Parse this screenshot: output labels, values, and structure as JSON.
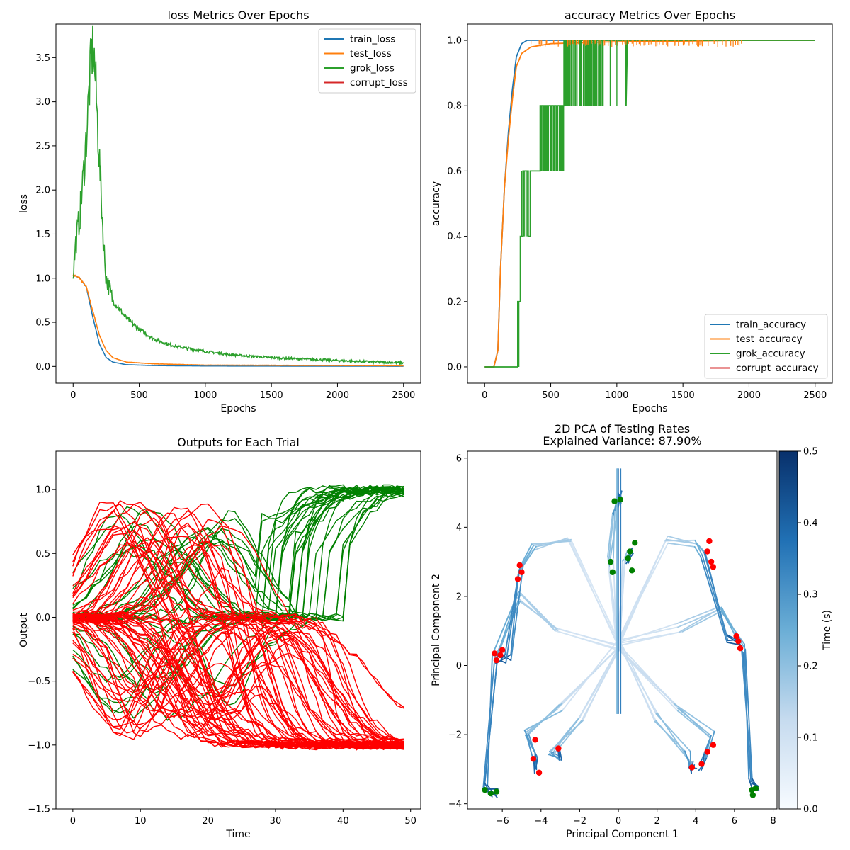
{
  "chart_data": [
    {
      "type": "line",
      "title": "loss Metrics Over Epochs",
      "xlabel": "Epochs",
      "ylabel": "loss",
      "xlim": [
        -130,
        2630
      ],
      "ylim": [
        -0.19,
        3.88
      ],
      "xticks": [
        0,
        500,
        1000,
        1500,
        2000,
        2500
      ],
      "xtick_labels": [
        "0",
        "500",
        "1000",
        "1500",
        "2000",
        "2500"
      ],
      "yticks": [
        0,
        0.5,
        1,
        1.5,
        2,
        2.5,
        3,
        3.5
      ],
      "ytick_labels": [
        "0.0",
        "0.5",
        "1.0",
        "1.5",
        "2.0",
        "2.5",
        "3.0",
        "3.5"
      ],
      "legend_position": "top-right",
      "series": [
        {
          "name": "train_loss",
          "color": "#1f77b4",
          "noise": 0,
          "points": [
            [
              0,
              1.04
            ],
            [
              50,
              1.0
            ],
            [
              100,
              0.9
            ],
            [
              150,
              0.55
            ],
            [
              200,
              0.25
            ],
            [
              250,
              0.1
            ],
            [
              300,
              0.05
            ],
            [
              400,
              0.02
            ],
            [
              600,
              0.01
            ],
            [
              1000,
              0.005
            ],
            [
              2500,
              0.002
            ]
          ]
        },
        {
          "name": "test_loss",
          "color": "#ff7f0e",
          "noise": 0.005,
          "points": [
            [
              0,
              1.04
            ],
            [
              50,
              1.0
            ],
            [
              100,
              0.9
            ],
            [
              150,
              0.62
            ],
            [
              200,
              0.35
            ],
            [
              250,
              0.18
            ],
            [
              300,
              0.1
            ],
            [
              400,
              0.05
            ],
            [
              600,
              0.03
            ],
            [
              1000,
              0.015
            ],
            [
              2500,
              0.008
            ]
          ]
        },
        {
          "name": "grok_loss",
          "color": "#2ca02c",
          "noise": 0.05,
          "points": [
            [
              0,
              1.05
            ],
            [
              20,
              1.4
            ],
            [
              50,
              1.7
            ],
            [
              80,
              2.2
            ],
            [
              100,
              2.6
            ],
            [
              120,
              3.1
            ],
            [
              140,
              3.55
            ],
            [
              155,
              3.6
            ],
            [
              170,
              3.2
            ],
            [
              190,
              2.6
            ],
            [
              210,
              2.0
            ],
            [
              230,
              1.4
            ],
            [
              250,
              1.0
            ],
            [
              300,
              0.75
            ],
            [
              400,
              0.55
            ],
            [
              500,
              0.42
            ],
            [
              600,
              0.32
            ],
            [
              700,
              0.26
            ],
            [
              800,
              0.22
            ],
            [
              1000,
              0.17
            ],
            [
              1200,
              0.13
            ],
            [
              1500,
              0.1
            ],
            [
              1800,
              0.08
            ],
            [
              2100,
              0.06
            ],
            [
              2500,
              0.04
            ]
          ]
        },
        {
          "name": "corrupt_loss",
          "color": "#d62728",
          "noise": 0,
          "points": []
        }
      ]
    },
    {
      "type": "line",
      "title": "accuracy Metrics Over Epochs",
      "xlabel": "Epochs",
      "ylabel": "accuracy",
      "xlim": [
        -130,
        2630
      ],
      "ylim": [
        -0.05,
        1.05
      ],
      "xticks": [
        0,
        500,
        1000,
        1500,
        2000,
        2500
      ],
      "xtick_labels": [
        "0",
        "500",
        "1000",
        "1500",
        "2000",
        "2500"
      ],
      "yticks": [
        0,
        0.2,
        0.4,
        0.6,
        0.8,
        1.0
      ],
      "ytick_labels": [
        "0.0",
        "0.2",
        "0.4",
        "0.6",
        "0.8",
        "1.0"
      ],
      "legend_position": "bottom-right",
      "series": [
        {
          "name": "train_accuracy",
          "color": "#1f77b4",
          "points": [
            [
              0,
              0
            ],
            [
              70,
              0
            ],
            [
              100,
              0.05
            ],
            [
              120,
              0.3
            ],
            [
              150,
              0.55
            ],
            [
              180,
              0.72
            ],
            [
              210,
              0.85
            ],
            [
              240,
              0.95
            ],
            [
              280,
              0.99
            ],
            [
              320,
              1.0
            ],
            [
              2500,
              1.0
            ]
          ]
        },
        {
          "name": "test_accuracy",
          "color": "#ff7f0e",
          "points": [
            [
              0,
              0
            ],
            [
              70,
              0
            ],
            [
              100,
              0.05
            ],
            [
              120,
              0.3
            ],
            [
              150,
              0.55
            ],
            [
              180,
              0.7
            ],
            [
              210,
              0.82
            ],
            [
              240,
              0.92
            ],
            [
              280,
              0.96
            ],
            [
              350,
              0.98
            ],
            [
              500,
              0.99
            ],
            [
              900,
              0.995
            ],
            [
              1950,
              1.0
            ],
            [
              2500,
              1.0
            ]
          ]
        },
        {
          "name": "grok_accuracy",
          "color": "#2ca02c",
          "points": [
            [
              0,
              0
            ],
            [
              250,
              0
            ],
            [
              250,
              0.2
            ],
            [
              270,
              0.2
            ],
            [
              270,
              0.4
            ],
            [
              290,
              0.4
            ],
            [
              290,
              0.6
            ],
            [
              330,
              0.6
            ],
            [
              330,
              0.4
            ],
            [
              345,
              0.4
            ],
            [
              345,
              0.6
            ],
            [
              420,
              0.6
            ],
            [
              420,
              0.8
            ],
            [
              600,
              0.8
            ],
            [
              600,
              1.0
            ],
            [
              1070,
              1.0
            ],
            [
              1070,
              0.8
            ],
            [
              1080,
              1.0
            ],
            [
              2500,
              1.0
            ]
          ]
        },
        {
          "name": "corrupt_accuracy",
          "color": "#d62728",
          "points": []
        }
      ]
    },
    {
      "type": "line",
      "title": "Outputs for Each Trial",
      "xlabel": "Time",
      "ylabel": "Output",
      "xlim": [
        -2.5,
        51.5
      ],
      "ylim": [
        -1.5,
        1.3
      ],
      "xticks": [
        0,
        10,
        20,
        30,
        40,
        50
      ],
      "xtick_labels": [
        "0",
        "10",
        "20",
        "30",
        "40",
        "50"
      ],
      "yticks": [
        -1.5,
        -1.0,
        -0.5,
        0,
        0.5,
        1.0
      ],
      "ytick_labels": [
        "−1.5",
        "−1.0",
        "−0.5",
        "0.0",
        "0.5",
        "1.0"
      ],
      "groups": [
        {
          "color": "#008000",
          "final": 1.0,
          "count": 30
        },
        {
          "color": "#ff0000",
          "final": -1.0,
          "count": 70
        }
      ],
      "x_range": [
        0,
        49
      ]
    },
    {
      "type": "line",
      "title": "2D PCA of Testing Rates",
      "subtitle": "Explained Variance: 87.90%",
      "xlabel": "Principal Component 1",
      "ylabel": "Principal Component 2",
      "xlim": [
        -7.8,
        8.2
      ],
      "ylim": [
        -4.15,
        6.2
      ],
      "xticks": [
        -6,
        -4,
        -2,
        0,
        2,
        4,
        6,
        8
      ],
      "xtick_labels": [
        "−6",
        "−4",
        "−2",
        "0",
        "2",
        "4",
        "6",
        "8"
      ],
      "yticks": [
        -4,
        -2,
        0,
        2,
        4,
        6
      ],
      "ytick_labels": [
        "−4",
        "−2",
        "0",
        "2",
        "4",
        "6"
      ],
      "colorbar": {
        "label": "Time (s)",
        "range": [
          0,
          0.5
        ],
        "ticks": [
          0,
          0.1,
          0.2,
          0.3,
          0.4,
          0.5
        ],
        "tick_labels": [
          "0.0",
          "0.1",
          "0.2",
          "0.3",
          "0.4",
          "0.5"
        ],
        "colormap": [
          "#f7fbff",
          "#c6dbef",
          "#6baed6",
          "#2171b5",
          "#08306b"
        ]
      },
      "origin": [
        0.0,
        0.6
      ],
      "cycles": [
        {
          "path": [
            [
              -3.2,
              1.1
            ],
            [
              -5.2,
              2.0
            ],
            [
              -6.4,
              0.2
            ],
            [
              -6.9,
              -3.5
            ],
            [
              -6.4,
              -3.7
            ]
          ],
          "end_color": "#008000"
        },
        {
          "path": [
            [
              3.2,
              1.1
            ],
            [
              5.2,
              1.6
            ],
            [
              6.5,
              0.5
            ],
            [
              6.9,
              -3.3
            ],
            [
              7.1,
              -3.6
            ]
          ],
          "end_color": "#008000"
        },
        {
          "path": [
            [
              -2.6,
              3.6
            ],
            [
              -4.4,
              3.4
            ],
            [
              -5.0,
              2.8
            ],
            [
              -5.7,
              0.2
            ],
            [
              -6.2,
              0.2
            ]
          ],
          "end_color": "#ff0000"
        },
        {
          "path": [
            [
              2.6,
              3.6
            ],
            [
              4.0,
              3.5
            ],
            [
              4.4,
              3.2
            ],
            [
              5.6,
              0.8
            ],
            [
              6.2,
              0.6
            ]
          ],
          "end_color": "#ff0000"
        },
        {
          "path": [
            [
              -3.0,
              -1.2
            ],
            [
              -4.8,
              -2.0
            ],
            [
              -4.3,
              -2.7
            ],
            [
              -4.2,
              -3.0
            ]
          ],
          "end_color": "#ff0000"
        },
        {
          "path": [
            [
              3.0,
              -1.2
            ],
            [
              4.8,
              -2.0
            ],
            [
              4.4,
              -2.7
            ],
            [
              4.3,
              -2.9
            ]
          ],
          "end_color": "#ff0000"
        },
        {
          "path": [
            [
              -0.4,
              3.0
            ],
            [
              -0.2,
              4.5
            ],
            [
              0.0,
              5.0
            ],
            [
              0.1,
              4.8
            ]
          ],
          "end_color": "#008000"
        },
        {
          "path": [
            [
              0.3,
              3.0
            ],
            [
              0.5,
              3.2
            ],
            [
              0.6,
              3.3
            ],
            [
              0.5,
              3.1
            ]
          ],
          "end_color": "#008000"
        },
        {
          "path": [
            [
              -2.0,
              -1.5
            ],
            [
              -3.5,
              -2.6
            ],
            [
              -3.0,
              -2.6
            ],
            [
              -3.2,
              -2.45
            ]
          ],
          "end_color": "#ff0000"
        },
        {
          "path": [
            [
              2.0,
              -1.5
            ],
            [
              3.6,
              -2.6
            ],
            [
              3.8,
              -3.0
            ],
            [
              3.9,
              -2.9
            ]
          ],
          "end_color": "#ff0000"
        }
      ],
      "end_markers": [
        {
          "x": -6.1,
          "y": 0.3,
          "color": "#ff0000"
        },
        {
          "x": -6.3,
          "y": 0.15,
          "color": "#ff0000"
        },
        {
          "x": -6.0,
          "y": 0.45,
          "color": "#ff0000"
        },
        {
          "x": -6.4,
          "y": 0.35,
          "color": "#ff0000"
        },
        {
          "x": -5.0,
          "y": 2.7,
          "color": "#ff0000"
        },
        {
          "x": -5.1,
          "y": 2.9,
          "color": "#ff0000"
        },
        {
          "x": -5.2,
          "y": 2.5,
          "color": "#ff0000"
        },
        {
          "x": 4.6,
          "y": 3.3,
          "color": "#ff0000"
        },
        {
          "x": 4.8,
          "y": 3.0,
          "color": "#ff0000"
        },
        {
          "x": 4.9,
          "y": 2.85,
          "color": "#ff0000"
        },
        {
          "x": 4.7,
          "y": 3.6,
          "color": "#ff0000"
        },
        {
          "x": 6.2,
          "y": 0.7,
          "color": "#ff0000"
        },
        {
          "x": 6.3,
          "y": 0.5,
          "color": "#ff0000"
        },
        {
          "x": 6.1,
          "y": 0.85,
          "color": "#ff0000"
        },
        {
          "x": -4.3,
          "y": -2.15,
          "color": "#ff0000"
        },
        {
          "x": -4.4,
          "y": -2.7,
          "color": "#ff0000"
        },
        {
          "x": -4.1,
          "y": -3.1,
          "color": "#ff0000"
        },
        {
          "x": -3.1,
          "y": -2.4,
          "color": "#ff0000"
        },
        {
          "x": 3.8,
          "y": -2.95,
          "color": "#ff0000"
        },
        {
          "x": 4.3,
          "y": -2.85,
          "color": "#ff0000"
        },
        {
          "x": 4.6,
          "y": -2.5,
          "color": "#ff0000"
        },
        {
          "x": 4.9,
          "y": -2.3,
          "color": "#ff0000"
        },
        {
          "x": -6.9,
          "y": -3.6,
          "color": "#008000"
        },
        {
          "x": -6.6,
          "y": -3.7,
          "color": "#008000"
        },
        {
          "x": -6.3,
          "y": -3.65,
          "color": "#008000"
        },
        {
          "x": 6.9,
          "y": -3.6,
          "color": "#008000"
        },
        {
          "x": 7.1,
          "y": -3.55,
          "color": "#008000"
        },
        {
          "x": 6.95,
          "y": -3.75,
          "color": "#008000"
        },
        {
          "x": -0.2,
          "y": 4.75,
          "color": "#008000"
        },
        {
          "x": 0.1,
          "y": 4.8,
          "color": "#008000"
        },
        {
          "x": -0.4,
          "y": 3.0,
          "color": "#008000"
        },
        {
          "x": -0.3,
          "y": 2.7,
          "color": "#008000"
        },
        {
          "x": 0.5,
          "y": 3.1,
          "color": "#008000"
        },
        {
          "x": 0.6,
          "y": 3.3,
          "color": "#008000"
        },
        {
          "x": 0.7,
          "y": 2.75,
          "color": "#008000"
        },
        {
          "x": 0.85,
          "y": 3.55,
          "color": "#008000"
        }
      ]
    }
  ]
}
